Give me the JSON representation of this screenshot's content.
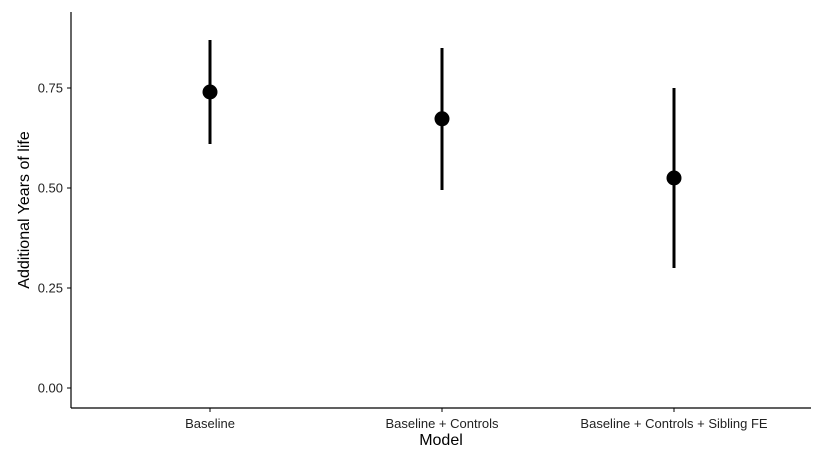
{
  "chart_data": {
    "type": "scatter",
    "subtype": "point-range",
    "title": "",
    "xlabel": "Model",
    "ylabel": "Additional Years of life",
    "categories": [
      "Baseline",
      "Baseline + Controls",
      "Baseline + Controls + Sibling FE"
    ],
    "estimates": [
      0.74,
      0.673,
      0.525
    ],
    "lower": [
      0.61,
      0.495,
      0.3
    ],
    "upper": [
      0.87,
      0.85,
      0.75
    ],
    "y_ticks": [
      "0.00",
      "0.25",
      "0.50",
      "0.75"
    ],
    "ylim": [
      -0.05,
      0.94
    ],
    "grid": false,
    "legend": "none",
    "colors": {
      "point": "#000000",
      "axis": "#000000",
      "text": "#222222"
    }
  }
}
